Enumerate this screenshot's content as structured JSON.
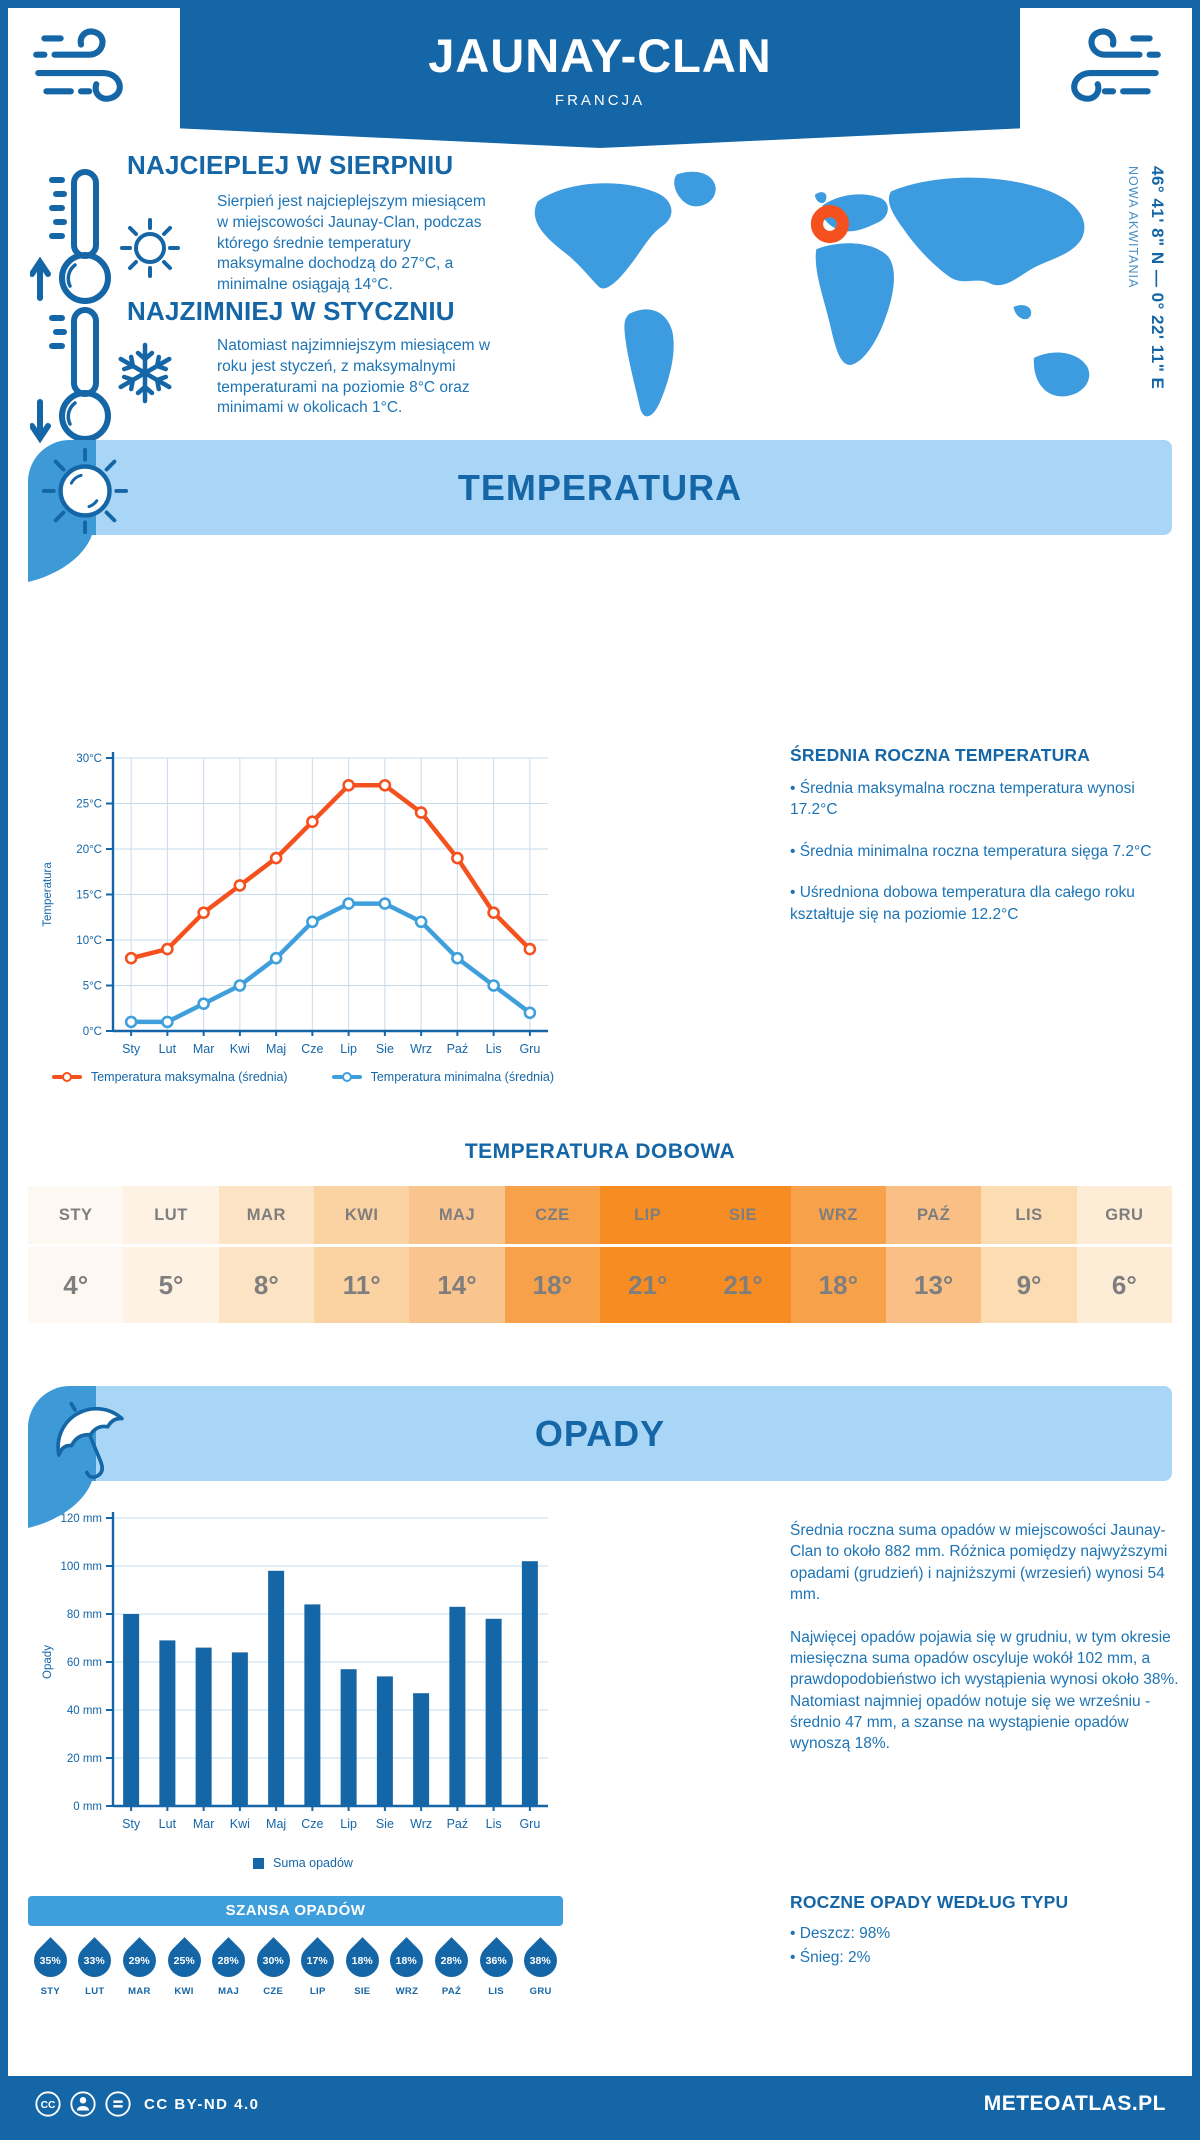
{
  "header": {
    "title": "JAUNAY-CLAN",
    "subtitle": "FRANCJA"
  },
  "location": {
    "coordinates": "46° 41' 8\" N — 0° 22' 11\" E",
    "region": "NOWA AKWITANIA"
  },
  "highlights": {
    "warm_title": "NAJCIEPLEJ W SIERPNIU",
    "warm_text": "Sierpień jest najcieplejszym miesiącem w miejscowości Jaunay-Clan, podczas którego średnie temperatury maksymalne dochodzą do 27°C, a minimalne osiągają 14°C.",
    "cold_title": "NAJZIMNIEJ W STYCZNIU",
    "cold_text": "Natomiast najzimniejszym miesiącem w roku jest styczeń, z maksymalnymi temperaturami na poziomie 8°C oraz minimami w okolicach 1°C."
  },
  "temperature_section": {
    "banner_title": "TEMPERATURA",
    "summary_title": "ŚREDNIA ROCZNA TEMPERATURA",
    "bullets": [
      "• Średnia maksymalna roczna temperatura wynosi 17.2°C",
      "• Średnia minimalna roczna temperatura sięga 7.2°C",
      "• Uśredniona dobowa temperatura dla całego roku kształtuje się na poziomie 12.2°C"
    ]
  },
  "precipitation_section": {
    "banner_title": "OPADY",
    "p1": "Średnia roczna suma opadów w miejscowości Jaunay-Clan to około 882 mm. Różnica pomiędzy najwyższymi opadami (grudzień) i najniższymi (wrzesień) wynosi 54 mm.",
    "p2": "Najwięcej opadów pojawia się w grudniu, w tym okresie miesięczna suma opadów oscyluje wokół 102 mm, a prawdopodobieństwo ich wystąpienia wynosi około 38%. Natomiast najmniej opadów notuje się we wrześniu - średnio 47 mm, a szanse na wystąpienie opadów wynoszą 18%.",
    "type_title": "ROCZNE OPADY WEDŁUG TYPU",
    "type_bullets": [
      "• Deszcz: 98%",
      "• Śnieg: 2%"
    ]
  },
  "chart_data": [
    {
      "type": "line",
      "title": "TEMPERATURA",
      "categories": [
        "Sty",
        "Lut",
        "Mar",
        "Kwi",
        "Maj",
        "Cze",
        "Lip",
        "Sie",
        "Wrz",
        "Paź",
        "Lis",
        "Gru"
      ],
      "series": [
        {
          "name": "Temperatura maksymalna (średnia)",
          "color": "#f4511e",
          "values": [
            8,
            9,
            13,
            16,
            19,
            23,
            27,
            27,
            24,
            19,
            13,
            9
          ]
        },
        {
          "name": "Temperatura minimalna (średnia)",
          "color": "#3f9fdc",
          "values": [
            1,
            1,
            3,
            5,
            8,
            12,
            14,
            14,
            12,
            8,
            5,
            2
          ]
        }
      ],
      "ylabel": "Temperatura",
      "ylim": [
        0,
        30
      ],
      "ytick_step": 5,
      "ytick_suffix": "°C",
      "grid": true,
      "legend_position": "bottom"
    },
    {
      "type": "bar",
      "title": "OPADY",
      "categories": [
        "Sty",
        "Lut",
        "Mar",
        "Kwi",
        "Maj",
        "Cze",
        "Lip",
        "Sie",
        "Wrz",
        "Paź",
        "Lis",
        "Gru"
      ],
      "values": [
        80,
        69,
        66,
        64,
        98,
        84,
        57,
        54,
        47,
        83,
        78,
        102
      ],
      "ylabel": "Opady",
      "ylim": [
        0,
        120
      ],
      "ytick_step": 20,
      "ytick_suffix": " mm",
      "legend": "Suma opadów",
      "bar_color": "#1566a6",
      "grid": true
    },
    {
      "type": "table",
      "title": "TEMPERATURA DOBOWA",
      "categories": [
        "STY",
        "LUT",
        "MAR",
        "KWI",
        "MAJ",
        "CZE",
        "LIP",
        "SIE",
        "WRZ",
        "PAŹ",
        "LIS",
        "GRU"
      ],
      "values": [
        "4°",
        "5°",
        "8°",
        "11°",
        "14°",
        "18°",
        "21°",
        "21°",
        "18°",
        "13°",
        "9°",
        "6°"
      ],
      "cell_colors": [
        "#fdf8f2",
        "#fdf2e4",
        "#fce3c4",
        "#fbd2a2",
        "#fac48e",
        "#f8a14b",
        "#f78c22",
        "#f78c22",
        "#f8a14b",
        "#fabf84",
        "#fcdcb2",
        "#fdecd6"
      ]
    },
    {
      "type": "table",
      "title": "SZANSA OPADÓW",
      "categories": [
        "STY",
        "LUT",
        "MAR",
        "KWI",
        "MAJ",
        "CZE",
        "LIP",
        "SIE",
        "WRZ",
        "PAŹ",
        "LIS",
        "GRU"
      ],
      "values": [
        "35%",
        "33%",
        "29%",
        "25%",
        "28%",
        "30%",
        "17%",
        "18%",
        "18%",
        "28%",
        "36%",
        "38%"
      ]
    }
  ],
  "footer": {
    "license": "CC BY-ND 4.0",
    "brand": "METEOATLAS.PL"
  },
  "colors": {
    "primary": "#1566a6",
    "banner_light": "#a9d6f6",
    "banner_cap": "#3d9ad6",
    "map_blue": "#3d9bdf",
    "marker_orange": "#f4511e",
    "line_max": "#f4511e",
    "line_min": "#3f9fdc",
    "grid": "#c6dcee",
    "body_text": "#1d74b5",
    "table_text": "#7e7e7e"
  }
}
